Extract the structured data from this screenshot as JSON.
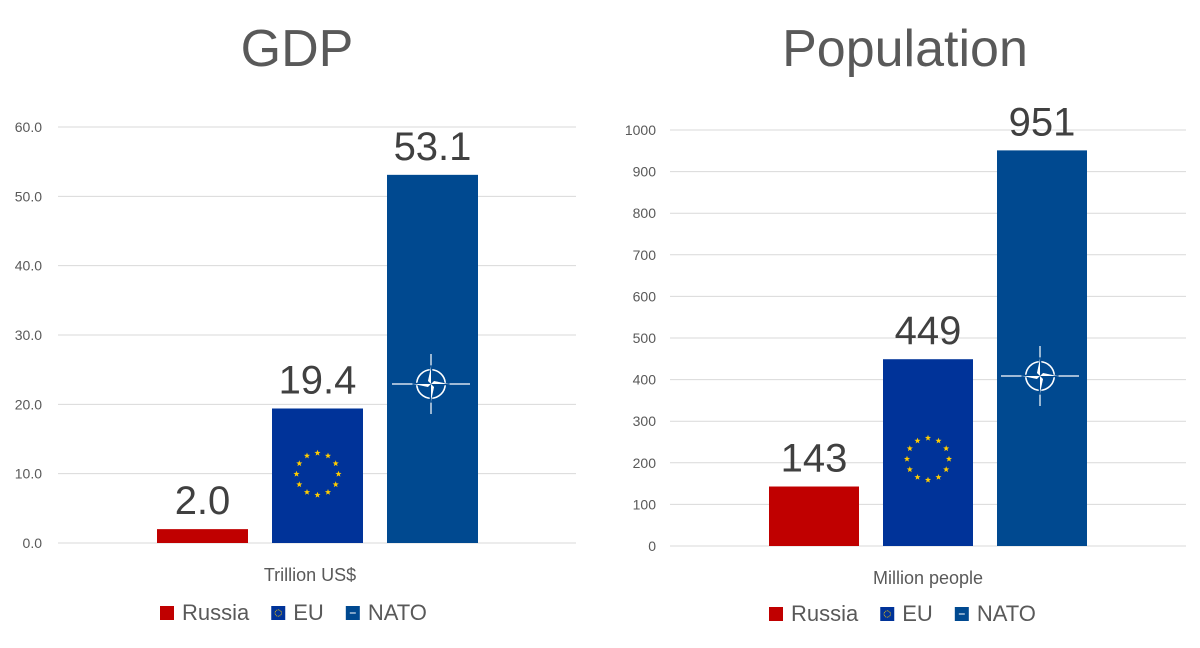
{
  "chart_data": [
    {
      "type": "bar",
      "title": "GDP",
      "xlabel": "Trillion US$",
      "ylabel": "",
      "ylim": [
        0,
        60
      ],
      "ytick_step": 10,
      "ytick_labels": [
        "0.0",
        "10.0",
        "20.0",
        "30.0",
        "40.0",
        "50.0",
        "60.0"
      ],
      "grid": true,
      "legend_placement": "bottom",
      "series": [
        {
          "name": "Russia",
          "values": [
            2.0
          ],
          "label": "2.0",
          "color": "#c00000",
          "emblem": "none"
        },
        {
          "name": "EU",
          "values": [
            19.4
          ],
          "label": "19.4",
          "color": "#003399",
          "emblem": "eu-stars-icon"
        },
        {
          "name": "NATO",
          "values": [
            53.1
          ],
          "label": "53.1",
          "color": "#004990",
          "emblem": "nato-compass-icon"
        }
      ]
    },
    {
      "type": "bar",
      "title": "Population",
      "xlabel": "Million people",
      "ylabel": "",
      "ylim": [
        0,
        1000
      ],
      "ytick_step": 100,
      "ytick_labels": [
        "0",
        "100",
        "200",
        "300",
        "400",
        "500",
        "600",
        "700",
        "800",
        "900",
        "1000"
      ],
      "grid": true,
      "legend_placement": "bottom",
      "series": [
        {
          "name": "Russia",
          "values": [
            143
          ],
          "label": "143",
          "color": "#c00000",
          "emblem": "none"
        },
        {
          "name": "EU",
          "values": [
            449
          ],
          "label": "449",
          "color": "#003399",
          "emblem": "eu-stars-icon"
        },
        {
          "name": "NATO",
          "values": [
            951
          ],
          "label": "951",
          "color": "#004990",
          "emblem": "nato-compass-icon"
        }
      ]
    }
  ],
  "colors": {
    "russia": "#c00000",
    "eu": "#003399",
    "nato": "#004990",
    "eu_star": "#ffcc00",
    "gridline": "#d9d9d9",
    "axis_text": "#595959",
    "title_text": "#595959",
    "value_text": "#404040"
  }
}
